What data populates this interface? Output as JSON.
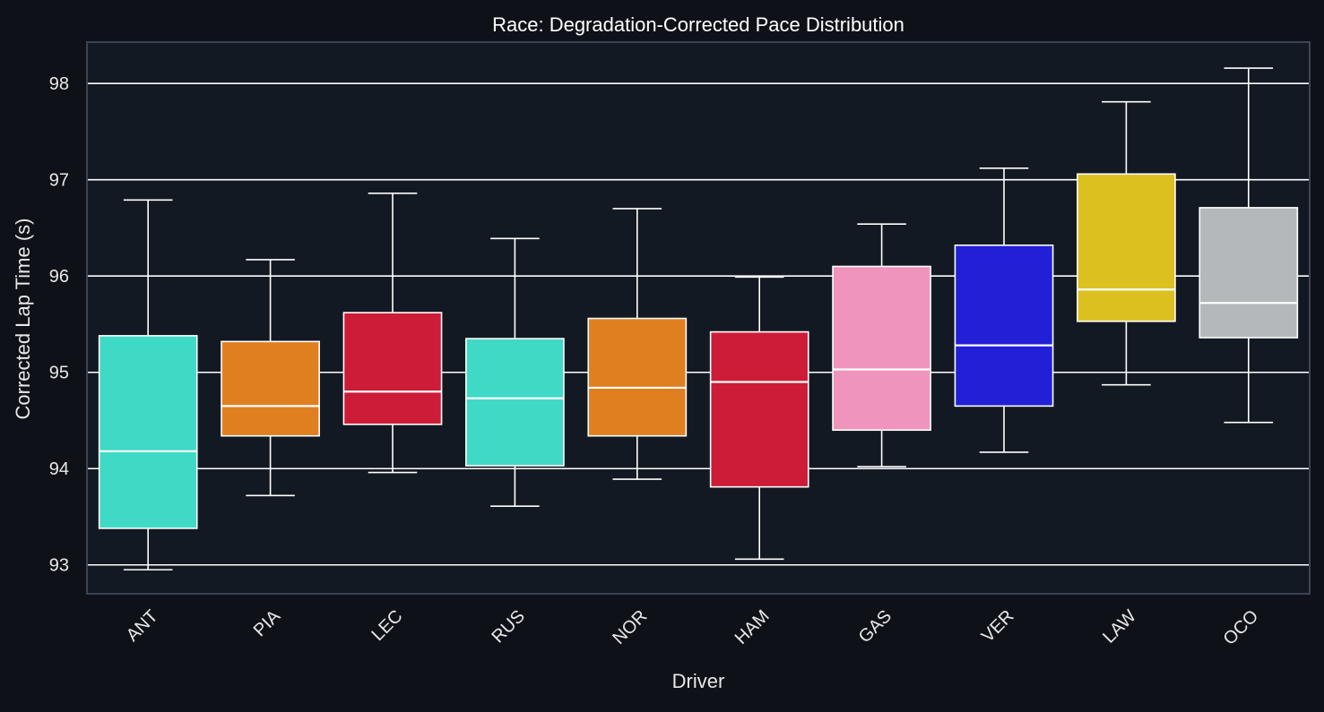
{
  "chart_data": {
    "type": "box",
    "title": "Race: Degradation-Corrected Pace Distribution",
    "xlabel": "Driver",
    "ylabel": "Corrected Lap Time (s)",
    "ylim": [
      92.7,
      98.43
    ],
    "yticks": [
      93,
      94,
      95,
      96,
      97,
      98
    ],
    "grid": "horizontal",
    "categories": [
      "ANT",
      "PIA",
      "LEC",
      "RUS",
      "NOR",
      "HAM",
      "GAS",
      "VER",
      "LAW",
      "OCO"
    ],
    "boxes": [
      {
        "label": "ANT",
        "whisker_low": 92.95,
        "q1": 93.38,
        "median": 94.18,
        "q3": 95.38,
        "whisker_high": 96.79,
        "color": "#40d9c5"
      },
      {
        "label": "PIA",
        "whisker_low": 93.72,
        "q1": 94.34,
        "median": 94.65,
        "q3": 95.32,
        "whisker_high": 96.17,
        "color": "#e07f20"
      },
      {
        "label": "LEC",
        "whisker_low": 93.96,
        "q1": 94.46,
        "median": 94.8,
        "q3": 95.62,
        "whisker_high": 96.86,
        "color": "#cc1c37"
      },
      {
        "label": "RUS",
        "whisker_low": 93.61,
        "q1": 94.03,
        "median": 94.73,
        "q3": 95.35,
        "whisker_high": 96.39,
        "color": "#40d9c5"
      },
      {
        "label": "NOR",
        "whisker_low": 93.89,
        "q1": 94.34,
        "median": 94.84,
        "q3": 95.56,
        "whisker_high": 96.7,
        "color": "#e07f20"
      },
      {
        "label": "HAM",
        "whisker_low": 93.06,
        "q1": 93.81,
        "median": 94.9,
        "q3": 95.42,
        "whisker_high": 95.99,
        "color": "#cc1c37"
      },
      {
        "label": "GAS",
        "whisker_low": 94.02,
        "q1": 94.4,
        "median": 95.03,
        "q3": 96.1,
        "whisker_high": 96.54,
        "color": "#ef95bd"
      },
      {
        "label": "VER",
        "whisker_low": 94.17,
        "q1": 94.65,
        "median": 95.28,
        "q3": 96.32,
        "whisker_high": 97.12,
        "color": "#2220d6"
      },
      {
        "label": "LAW",
        "whisker_low": 94.87,
        "q1": 95.53,
        "median": 95.86,
        "q3": 97.06,
        "whisker_high": 97.81,
        "color": "#dcc020"
      },
      {
        "label": "OCO",
        "whisker_low": 94.48,
        "q1": 95.36,
        "median": 95.72,
        "q3": 96.71,
        "whisker_high": 98.16,
        "color": "#b5b8bb"
      }
    ]
  },
  "style": {
    "page_bg": "#0e1118",
    "plot_bg": "#131922",
    "frame_color": "#3c4352",
    "grid_color": "#ffffff",
    "text_color": "#e8e8e8",
    "title_color": "#ffffff",
    "box_edge_color": "#ffffff"
  }
}
